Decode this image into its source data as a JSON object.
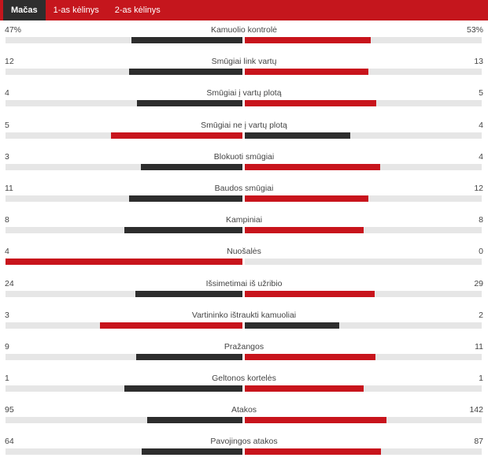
{
  "tabs": [
    {
      "label": "Mačas",
      "active": true
    },
    {
      "label": "1-as kėlinys",
      "active": false
    },
    {
      "label": "2-as kėlinys",
      "active": false
    }
  ],
  "colors": {
    "header": "#c5161d",
    "home_lead": "#c8141c",
    "away_lead": "#2d2d2d",
    "track": "#e6e6e6"
  },
  "stats": [
    {
      "name": "Kamuolio kontrolė",
      "left": "47%",
      "right": "53%",
      "left_value": 47,
      "right_value": 53
    },
    {
      "name": "Smūgiai link vartų",
      "left": "12",
      "right": "13",
      "left_value": 12,
      "right_value": 13
    },
    {
      "name": "Smūgiai į vartų plotą",
      "left": "4",
      "right": "5",
      "left_value": 4,
      "right_value": 5
    },
    {
      "name": "Smūgiai ne į vartų plotą",
      "left": "5",
      "right": "4",
      "left_value": 5,
      "right_value": 4
    },
    {
      "name": "Blokuoti smūgiai",
      "left": "3",
      "right": "4",
      "left_value": 3,
      "right_value": 4
    },
    {
      "name": "Baudos smūgiai",
      "left": "11",
      "right": "12",
      "left_value": 11,
      "right_value": 12
    },
    {
      "name": "Kampiniai",
      "left": "8",
      "right": "8",
      "left_value": 8,
      "right_value": 8
    },
    {
      "name": "Nuošalės",
      "left": "4",
      "right": "0",
      "left_value": 4,
      "right_value": 0
    },
    {
      "name": "Išsimetimai iš užribio",
      "left": "24",
      "right": "29",
      "left_value": 24,
      "right_value": 29
    },
    {
      "name": "Vartininko ištraukti kamuoliai",
      "left": "3",
      "right": "2",
      "left_value": 3,
      "right_value": 2
    },
    {
      "name": "Pražangos",
      "left": "9",
      "right": "11",
      "left_value": 9,
      "right_value": 11
    },
    {
      "name": "Geltonos kortelės",
      "left": "1",
      "right": "1",
      "left_value": 1,
      "right_value": 1
    },
    {
      "name": "Atakos",
      "left": "95",
      "right": "142",
      "left_value": 95,
      "right_value": 142
    },
    {
      "name": "Pavojingos atakos",
      "left": "64",
      "right": "87",
      "left_value": 64,
      "right_value": 87
    }
  ]
}
